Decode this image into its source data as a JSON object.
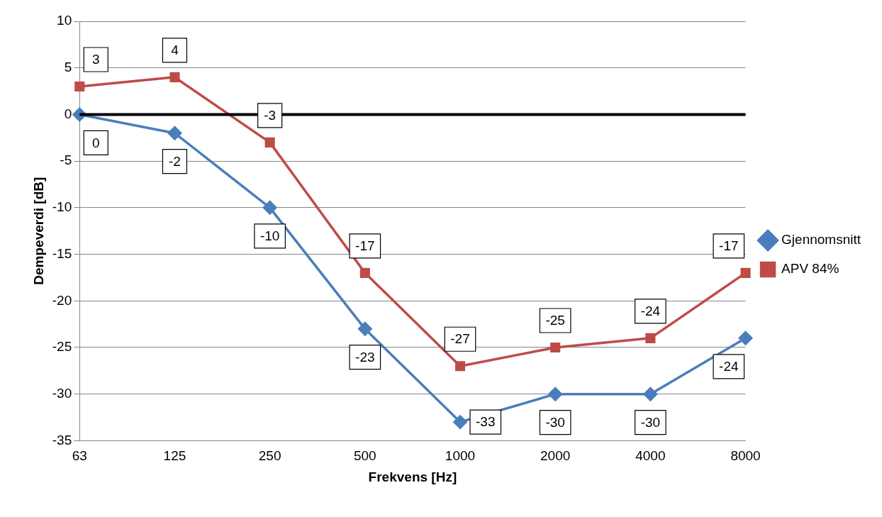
{
  "chart_data": {
    "type": "line",
    "categories": [
      "63",
      "125",
      "250",
      "500",
      "1000",
      "2000",
      "4000",
      "8000"
    ],
    "series": [
      {
        "name": "Gjennomsnitt",
        "color": "#4a7ebb",
        "marker": "diamond",
        "values": [
          0,
          -2,
          -10,
          -23,
          -33,
          -30,
          -30,
          -24
        ]
      },
      {
        "name": "APV 84%",
        "color": "#be4b48",
        "marker": "square",
        "values": [
          3,
          4,
          -3,
          -17,
          -27,
          -25,
          -24,
          -17
        ]
      }
    ],
    "xlabel": "Frekvens [Hz]",
    "ylabel": "Dempeverdi [dB]",
    "ylim": [
      -35,
      10
    ],
    "yticks": [
      -35,
      -30,
      -25,
      -20,
      -15,
      -10,
      -5,
      0,
      5,
      10
    ],
    "grid": "y",
    "legend": "right",
    "data_labels": true,
    "line_style": "solid",
    "ref_lines": [
      {
        "axis": "y",
        "value": 0,
        "color": "#000000"
      }
    ]
  }
}
